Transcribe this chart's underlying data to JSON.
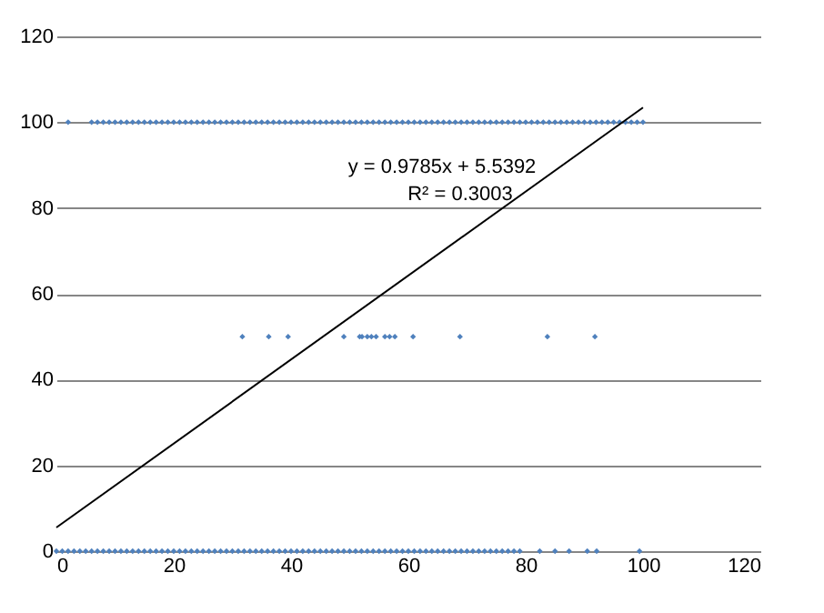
{
  "chart_data": {
    "type": "scatter",
    "xlim": [
      0,
      120
    ],
    "xticks": [
      0,
      20,
      40,
      60,
      80,
      100,
      120
    ],
    "ylim": [
      0,
      120
    ],
    "yticks": [
      0,
      20,
      40,
      60,
      80,
      100,
      120
    ],
    "grid": "y",
    "marker": "diamond",
    "annotations": [
      "y = 0.9785x + 5.5392",
      "R² = 0.3003"
    ],
    "series": [
      {
        "color": "#4f81bd",
        "x": [
          2,
          6,
          7,
          8,
          9,
          10,
          11,
          12,
          13,
          14,
          15,
          16,
          17,
          18,
          19,
          20,
          21,
          22,
          23,
          24,
          25,
          26,
          27,
          28,
          29,
          30,
          31,
          32,
          33,
          34,
          35,
          36,
          37,
          38,
          39,
          40,
          41,
          42,
          43,
          44,
          45,
          46,
          47,
          48,
          49,
          50,
          51,
          52,
          53,
          54,
          55,
          56,
          57,
          58,
          59,
          60,
          61,
          62,
          63,
          64,
          65,
          66,
          67,
          68,
          69,
          70,
          71,
          72,
          73,
          74,
          75,
          76,
          77,
          78,
          79,
          80,
          81,
          82,
          83,
          84,
          85,
          86,
          87,
          88,
          89,
          90,
          91,
          92,
          93,
          94,
          95,
          96,
          97,
          98,
          99,
          100,
          31.7,
          36.2,
          39.5,
          49,
          51.7,
          52.1,
          53,
          53.7,
          54.5,
          56,
          56.8,
          57.7,
          60.8,
          68.8,
          83.7,
          91.8,
          0,
          1,
          2,
          3,
          4,
          5,
          6,
          7,
          8,
          9,
          10,
          11,
          12,
          13,
          14,
          15,
          16,
          17,
          18,
          19,
          20,
          21,
          22,
          23,
          24,
          25,
          26,
          27,
          28,
          29,
          30,
          31,
          32,
          33,
          34,
          35,
          36,
          37,
          38,
          39,
          40,
          41,
          42,
          43,
          44,
          45,
          46,
          47,
          48,
          49,
          50,
          51,
          52,
          53,
          54,
          55,
          56,
          57,
          58,
          59,
          60,
          61,
          62,
          63,
          64,
          65,
          66,
          67,
          68,
          69,
          70,
          71,
          72,
          73,
          74,
          75,
          76,
          77,
          78,
          79,
          82.4,
          85,
          87.4,
          90.5,
          92.1,
          99.4
        ],
        "values": [
          100,
          100,
          100,
          100,
          100,
          100,
          100,
          100,
          100,
          100,
          100,
          100,
          100,
          100,
          100,
          100,
          100,
          100,
          100,
          100,
          100,
          100,
          100,
          100,
          100,
          100,
          100,
          100,
          100,
          100,
          100,
          100,
          100,
          100,
          100,
          100,
          100,
          100,
          100,
          100,
          100,
          100,
          100,
          100,
          100,
          100,
          100,
          100,
          100,
          100,
          100,
          100,
          100,
          100,
          100,
          100,
          100,
          100,
          100,
          100,
          100,
          100,
          100,
          100,
          100,
          100,
          100,
          100,
          100,
          100,
          100,
          100,
          100,
          100,
          100,
          100,
          100,
          100,
          100,
          100,
          100,
          100,
          100,
          100,
          100,
          100,
          100,
          100,
          100,
          100,
          100,
          100,
          100,
          100,
          100,
          100,
          50,
          50,
          50,
          50,
          50,
          50,
          50,
          50,
          50,
          50,
          50,
          50,
          50,
          50,
          50,
          50,
          0,
          0,
          0,
          0,
          0,
          0,
          0,
          0,
          0,
          0,
          0,
          0,
          0,
          0,
          0,
          0,
          0,
          0,
          0,
          0,
          0,
          0,
          0,
          0,
          0,
          0,
          0,
          0,
          0,
          0,
          0,
          0,
          0,
          0,
          0,
          0,
          0,
          0,
          0,
          0,
          0,
          0,
          0,
          0,
          0,
          0,
          0,
          0,
          0,
          0,
          0,
          0,
          0,
          0,
          0,
          0,
          0,
          0,
          0,
          0,
          0,
          0,
          0,
          0,
          0,
          0,
          0,
          0,
          0,
          0,
          0,
          0,
          0,
          0,
          0,
          0,
          0,
          0,
          0,
          0,
          0,
          0,
          0,
          0,
          0,
          0
        ]
      },
      {
        "type": "line",
        "marker": "none",
        "color": "#000000",
        "x": [
          0,
          100
        ],
        "values": [
          5.5,
          103.4
        ]
      }
    ]
  }
}
